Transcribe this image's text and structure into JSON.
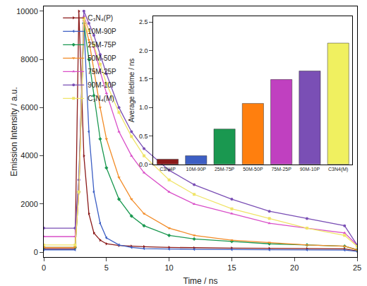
{
  "chart_data": [
    {
      "type": "line",
      "x_label": "Time / ns",
      "y_label": "Emission Intensity / a.u.",
      "xlim": [
        0,
        25
      ],
      "xticks": [
        0,
        5,
        10,
        15,
        20,
        25
      ],
      "ylim": [
        -200,
        10200
      ],
      "yticks": [
        0,
        2000,
        4000,
        6000,
        8000,
        10000
      ],
      "legend": "top-left",
      "x": [
        0,
        2.5,
        2.8,
        3.2,
        3.6,
        4,
        4.5,
        5,
        6,
        7,
        8,
        10,
        12,
        15,
        18,
        21,
        24,
        25
      ],
      "series": [
        {
          "name": "C₃N₄(P)",
          "color": "#8b1a1a",
          "marker": "triangle-right",
          "values": [
            150,
            150,
            10000,
            4000,
            1600,
            800,
            500,
            350,
            280,
            250,
            230,
            200,
            180,
            170,
            160,
            150,
            140,
            50
          ]
        },
        {
          "name": "10M-90P",
          "color": "#3d5fc4",
          "marker": "triangle-left",
          "values": [
            100,
            100,
            3000,
            9500,
            5000,
            2500,
            1200,
            600,
            300,
            200,
            150,
            130,
            120,
            110,
            100,
            100,
            90,
            40
          ]
        },
        {
          "name": "25M-75P",
          "color": "#1a9850",
          "marker": "diamond",
          "values": [
            200,
            200,
            2500,
            9500,
            8000,
            6500,
            4700,
            3500,
            2200,
            1500,
            1100,
            700,
            550,
            450,
            350,
            300,
            250,
            100
          ]
        },
        {
          "name": "50M-50P",
          "color": "#f28c28",
          "marker": "triangle-down",
          "values": [
            200,
            200,
            2500,
            9600,
            8800,
            7500,
            6000,
            4700,
            3100,
            2200,
            1600,
            1000,
            700,
            500,
            400,
            300,
            250,
            100
          ]
        },
        {
          "name": "75M-25P",
          "color": "#d94fc8",
          "marker": "triangle-up",
          "values": [
            650,
            650,
            2500,
            9800,
            9200,
            8500,
            7500,
            6600,
            5000,
            4000,
            3300,
            2500,
            2000,
            1600,
            1200,
            1000,
            800,
            300
          ]
        },
        {
          "name": "90M-10P",
          "color": "#7a4fb5",
          "marker": "circle",
          "values": [
            1000,
            1000,
            3000,
            10000,
            9500,
            9000,
            8200,
            7400,
            6000,
            5000,
            4300,
            3400,
            2800,
            2200,
            1700,
            1400,
            1100,
            300
          ]
        },
        {
          "name": "C₃N₄(M)",
          "color": "#f0e468",
          "marker": "square",
          "values": [
            300,
            300,
            2500,
            9700,
            9200,
            8600,
            7800,
            7000,
            5800,
            4800,
            4000,
            3000,
            2400,
            1800,
            1400,
            1000,
            700,
            250
          ]
        }
      ]
    },
    {
      "type": "bar",
      "y_label": "Average lifetime / ns",
      "categories": [
        "C3N4P",
        "10M-90P",
        "25M-75P",
        "50M-50P",
        "75M-25P",
        "90M-10P",
        "C3N4(M)"
      ],
      "values": [
        0.09,
        0.15,
        0.62,
        1.07,
        1.49,
        1.64,
        2.13
      ],
      "colors": [
        "#8b1a1a",
        "#3d5fc4",
        "#1a9850",
        "#ff7f0e",
        "#c040c0",
        "#7a4fb5",
        "#f0f060"
      ],
      "ylim": [
        0,
        2.6
      ],
      "yticks": [
        {
          "value": 0,
          "label": "0.0"
        },
        {
          "value": 0.5,
          "label": "0.5"
        },
        {
          "value": 1,
          "label": "1.0"
        },
        {
          "value": 1.5,
          "label": "1.5"
        },
        {
          "value": 2,
          "label": "2.0"
        },
        {
          "value": 2.5,
          "label": "2.5"
        }
      ]
    }
  ]
}
